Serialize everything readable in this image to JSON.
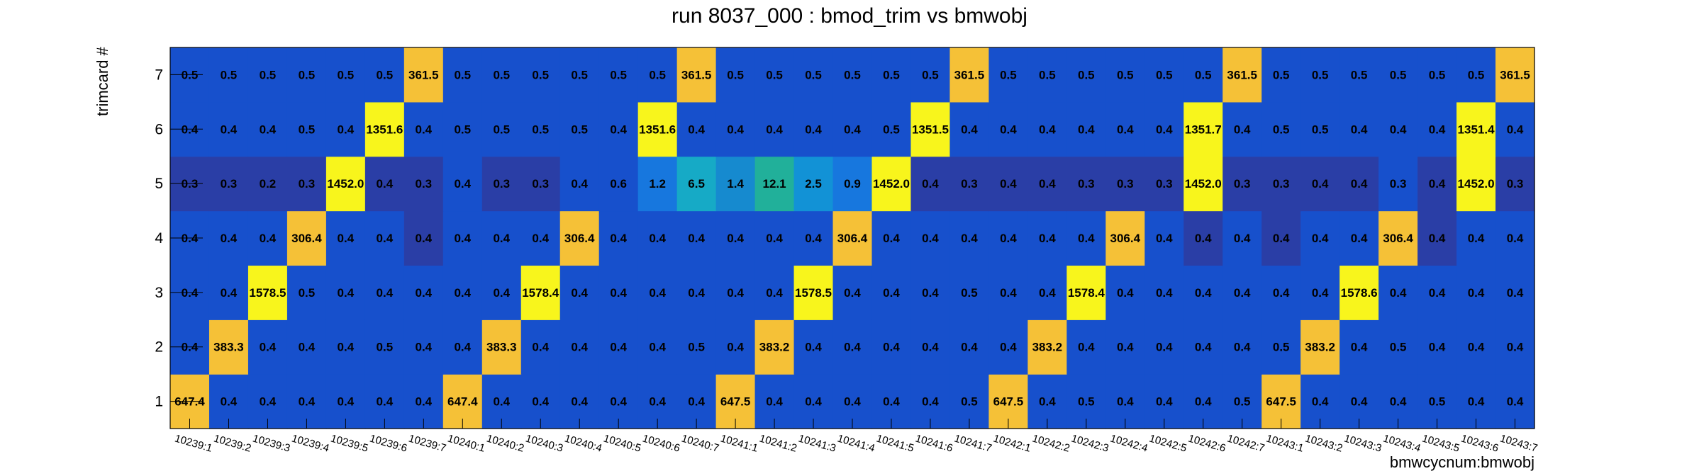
{
  "chart_data": {
    "type": "heatmap",
    "title": "run 8037_000 : bmod_trim vs bmwobj",
    "xlabel": "bmwcycnum:bmwobj",
    "ylabel": "trimcard #",
    "x_categories": [
      "10239:1",
      "10239:2",
      "10239:3",
      "10239:4",
      "10239:5",
      "10239:6",
      "10239:7",
      "10240:1",
      "10240:2",
      "10240:3",
      "10240:4",
      "10240:5",
      "10240:6",
      "10240:7",
      "10241:1",
      "10241:2",
      "10241:3",
      "10241:4",
      "10241:5",
      "10241:6",
      "10241:7",
      "10242:1",
      "10242:2",
      "10242:3",
      "10242:4",
      "10242:5",
      "10242:6",
      "10242:7",
      "10243:1",
      "10243:2",
      "10243:3",
      "10243:4",
      "10243:5",
      "10243:6",
      "10243:7"
    ],
    "y_categories": [
      "1",
      "2",
      "3",
      "4",
      "5",
      "6",
      "7"
    ],
    "rows": {
      "7": [
        "0.5",
        "0.5",
        "0.5",
        "0.5",
        "0.5",
        "0.5",
        "361.5",
        "0.5",
        "0.5",
        "0.5",
        "0.5",
        "0.5",
        "0.5",
        "361.5",
        "0.5",
        "0.5",
        "0.5",
        "0.5",
        "0.5",
        "0.5",
        "361.5",
        "0.5",
        "0.5",
        "0.5",
        "0.5",
        "0.5",
        "0.5",
        "361.5",
        "0.5",
        "0.5",
        "0.5",
        "0.5",
        "0.5",
        "0.5",
        "361.5"
      ],
      "6": [
        "0.4",
        "0.4",
        "0.4",
        "0.5",
        "0.4",
        "1351.6",
        "0.4",
        "0.5",
        "0.5",
        "0.5",
        "0.5",
        "0.4",
        "1351.6",
        "0.4",
        "0.4",
        "0.4",
        "0.4",
        "0.4",
        "0.5",
        "1351.5",
        "0.4",
        "0.4",
        "0.4",
        "0.4",
        "0.4",
        "0.4",
        "1351.7",
        "0.4",
        "0.5",
        "0.5",
        "0.4",
        "0.4",
        "0.4",
        "1351.4",
        "0.4"
      ],
      "5": [
        "0.3",
        "0.3",
        "0.2",
        "0.3",
        "1452.0",
        "0.4",
        "0.3",
        "0.4",
        "0.3",
        "0.3",
        "0.4",
        "0.6",
        "1.2",
        "6.5",
        "1.4",
        "12.1",
        "2.5",
        "0.9",
        "1452.0",
        "0.4",
        "0.3",
        "0.4",
        "0.4",
        "0.3",
        "0.3",
        "0.3",
        "1452.0",
        "0.3",
        "0.3",
        "0.4",
        "0.4",
        "0.3",
        "0.4",
        "1452.0",
        "0.3"
      ],
      "4": [
        "0.4",
        "0.4",
        "0.4",
        "306.4",
        "0.4",
        "0.4",
        "0.4",
        "0.4",
        "0.4",
        "0.4",
        "306.4",
        "0.4",
        "0.4",
        "0.4",
        "0.4",
        "0.4",
        "0.4",
        "306.4",
        "0.4",
        "0.4",
        "0.4",
        "0.4",
        "0.4",
        "0.4",
        "306.4",
        "0.4",
        "0.4",
        "0.4",
        "0.4",
        "0.4",
        "0.4",
        "306.4",
        "0.4",
        "0.4",
        "0.4"
      ],
      "3": [
        "0.4",
        "0.4",
        "1578.5",
        "0.5",
        "0.4",
        "0.4",
        "0.4",
        "0.4",
        "0.4",
        "1578.4",
        "0.4",
        "0.4",
        "0.4",
        "0.4",
        "0.4",
        "0.4",
        "1578.5",
        "0.4",
        "0.4",
        "0.4",
        "0.5",
        "0.4",
        "0.4",
        "1578.4",
        "0.4",
        "0.4",
        "0.4",
        "0.4",
        "0.4",
        "0.4",
        "1578.6",
        "0.4",
        "0.4",
        "0.4",
        "0.4"
      ],
      "2": [
        "0.4",
        "383.3",
        "0.4",
        "0.4",
        "0.4",
        "0.5",
        "0.4",
        "0.4",
        "383.3",
        "0.4",
        "0.4",
        "0.4",
        "0.4",
        "0.5",
        "0.4",
        "383.2",
        "0.4",
        "0.4",
        "0.4",
        "0.4",
        "0.4",
        "0.4",
        "383.2",
        "0.4",
        "0.4",
        "0.4",
        "0.4",
        "0.4",
        "0.5",
        "383.2",
        "0.4",
        "0.5",
        "0.4",
        "0.4",
        "0.4"
      ],
      "1": [
        "647.4",
        "0.4",
        "0.4",
        "0.4",
        "0.4",
        "0.4",
        "0.4",
        "647.4",
        "0.4",
        "0.4",
        "0.4",
        "0.4",
        "0.4",
        "0.4",
        "647.5",
        "0.4",
        "0.4",
        "0.4",
        "0.4",
        "0.4",
        "0.5",
        "647.5",
        "0.4",
        "0.5",
        "0.4",
        "0.4",
        "0.4",
        "0.5",
        "647.5",
        "0.4",
        "0.4",
        "0.4",
        "0.5",
        "0.4",
        "0.4"
      ]
    },
    "low_cells": {
      "5": [
        0,
        1,
        2,
        3,
        5,
        6,
        8,
        9,
        19,
        20,
        21,
        22,
        23,
        24,
        25,
        27,
        28,
        29,
        30,
        32,
        34
      ],
      "4": [
        6,
        26,
        28,
        32
      ]
    },
    "colors": {
      "base": "#1750cc",
      "low": "#2a3ea6",
      "high_yellow": "#f8f51c",
      "high_orange": "#f5c137",
      "mid_cyan": "#16aac6",
      "mid_teal": "#21b09a",
      "mid_blue1": "#1777de",
      "mid_blue2": "#1292d6",
      "mid_blue3": "#168acf"
    }
  }
}
